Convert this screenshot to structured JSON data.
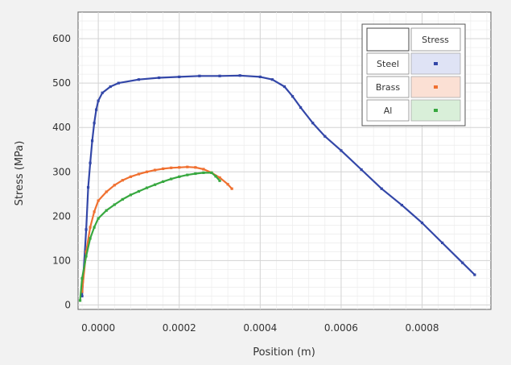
{
  "chart_data": {
    "type": "line",
    "xlabel": "Position (m)",
    "ylabel": "Stress (MPa)",
    "xlim": [
      -5e-05,
      0.00097
    ],
    "ylim": [
      -10,
      660
    ],
    "x_ticks": [
      0.0,
      0.0002,
      0.0004,
      0.0006,
      0.0008
    ],
    "x_tick_labels": [
      "0.0000",
      "0.0002",
      "0.0004",
      "0.0006",
      "0.0008"
    ],
    "y_ticks": [
      0,
      100,
      200,
      300,
      400,
      500,
      600
    ],
    "y_tick_labels": [
      "0",
      "100",
      "200",
      "300",
      "400",
      "500",
      "600"
    ],
    "grid": true,
    "legend_position": "top-right",
    "legend_header": "Stress",
    "series": [
      {
        "name": "Steel",
        "color": "#3347a8",
        "points": [
          [
            -4e-05,
            20
          ],
          [
            -3e-05,
            170
          ],
          [
            -2.5e-05,
            265
          ],
          [
            -2e-05,
            320
          ],
          [
            -1.5e-05,
            370
          ],
          [
            -1e-05,
            410
          ],
          [
            -5e-06,
            440
          ],
          [
            0.0,
            460
          ],
          [
            1e-05,
            478
          ],
          [
            3e-05,
            492
          ],
          [
            5e-05,
            500
          ],
          [
            0.0001,
            508
          ],
          [
            0.00015,
            512
          ],
          [
            0.0002,
            514
          ],
          [
            0.00025,
            516
          ],
          [
            0.0003,
            516
          ],
          [
            0.00035,
            517
          ],
          [
            0.0004,
            514
          ],
          [
            0.00043,
            508
          ],
          [
            0.00046,
            492
          ],
          [
            0.00048,
            470
          ],
          [
            0.0005,
            445
          ],
          [
            0.00053,
            410
          ],
          [
            0.00056,
            380
          ],
          [
            0.0006,
            348
          ],
          [
            0.00065,
            305
          ],
          [
            0.0007,
            262
          ],
          [
            0.00075,
            225
          ],
          [
            0.0008,
            185
          ],
          [
            0.00085,
            140
          ],
          [
            0.0009,
            95
          ],
          [
            0.00093,
            68
          ]
        ]
      },
      {
        "name": "Brass",
        "color": "#f07030",
        "points": [
          [
            -4e-05,
            30
          ],
          [
            -3e-05,
            120
          ],
          [
            -2e-05,
            175
          ],
          [
            -1e-05,
            210
          ],
          [
            0.0,
            235
          ],
          [
            2e-05,
            255
          ],
          [
            4e-05,
            270
          ],
          [
            6e-05,
            281
          ],
          [
            8e-05,
            289
          ],
          [
            0.0001,
            295
          ],
          [
            0.00012,
            300
          ],
          [
            0.00014,
            304
          ],
          [
            0.00016,
            307
          ],
          [
            0.00018,
            309
          ],
          [
            0.0002,
            310
          ],
          [
            0.00022,
            311
          ],
          [
            0.00024,
            310
          ],
          [
            0.00026,
            306
          ],
          [
            0.00028,
            298
          ],
          [
            0.0003,
            287
          ],
          [
            0.00032,
            272
          ],
          [
            0.00033,
            262
          ]
        ]
      },
      {
        "name": "Al",
        "color": "#38a840",
        "points": [
          [
            -4.5e-05,
            10
          ],
          [
            -4e-05,
            60
          ],
          [
            -3e-05,
            110
          ],
          [
            -2e-05,
            150
          ],
          [
            -1e-05,
            175
          ],
          [
            0.0,
            195
          ],
          [
            2e-05,
            213
          ],
          [
            4e-05,
            226
          ],
          [
            6e-05,
            238
          ],
          [
            8e-05,
            248
          ],
          [
            0.0001,
            256
          ],
          [
            0.00012,
            264
          ],
          [
            0.00014,
            271
          ],
          [
            0.00016,
            278
          ],
          [
            0.00018,
            284
          ],
          [
            0.0002,
            289
          ],
          [
            0.00022,
            293
          ],
          [
            0.00024,
            296
          ],
          [
            0.00026,
            298
          ],
          [
            0.00028,
            298
          ],
          [
            0.00029,
            290
          ],
          [
            0.0003,
            280
          ]
        ]
      }
    ]
  }
}
